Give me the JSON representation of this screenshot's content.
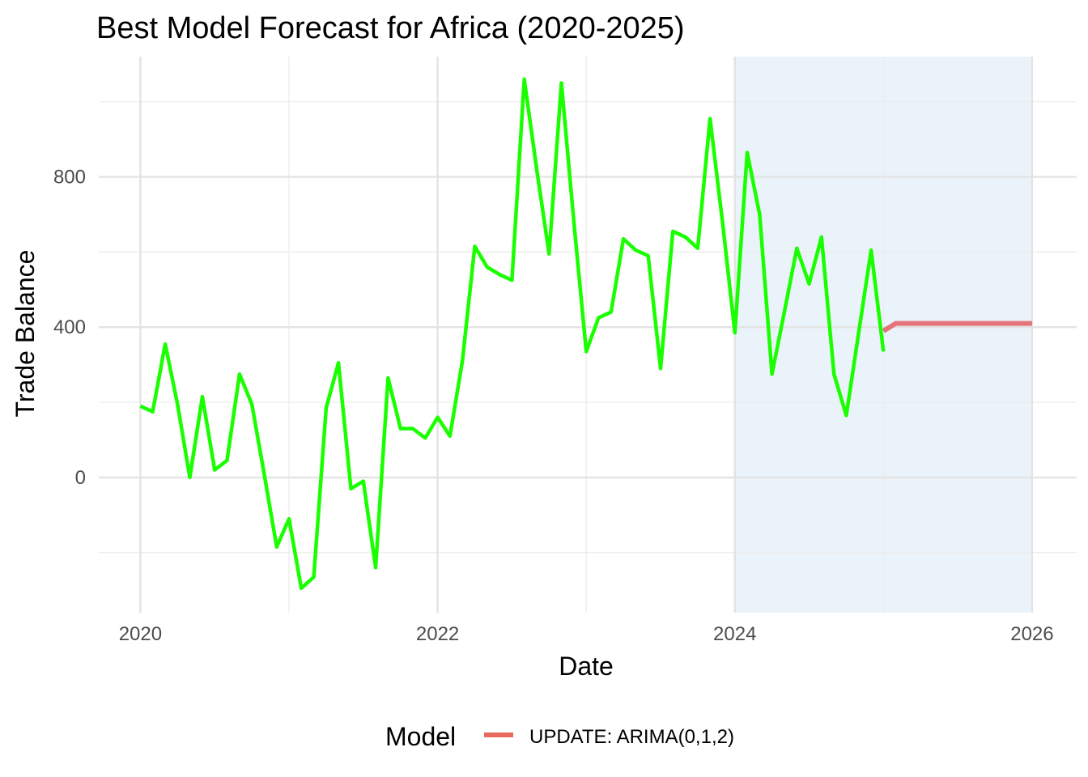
{
  "chart_data": {
    "type": "line",
    "title": "Best Model Forecast for Africa (2020-2025)",
    "xlabel": "Date",
    "ylabel": "Trade Balance",
    "x_ticks": [
      "2020",
      "2022",
      "2024",
      "2026"
    ],
    "y_ticks": [
      "0",
      "400",
      "800"
    ],
    "xlim": [
      2019.72,
      2026.3
    ],
    "ylim": [
      -360,
      1120
    ],
    "grid": true,
    "shaded_regions": [
      {
        "x_start": 2024.0,
        "x_end": 2026.0,
        "color": "#deebf7"
      }
    ],
    "series": [
      {
        "name": "",
        "color": "#1aff00",
        "x": [
          2020.0,
          2020.083,
          2020.167,
          2020.25,
          2020.333,
          2020.417,
          2020.5,
          2020.583,
          2020.667,
          2020.75,
          2020.833,
          2020.917,
          2021.0,
          2021.083,
          2021.167,
          2021.25,
          2021.333,
          2021.417,
          2021.5,
          2021.583,
          2021.667,
          2021.75,
          2021.833,
          2021.917,
          2022.0,
          2022.083,
          2022.167,
          2022.25,
          2022.333,
          2022.417,
          2022.5,
          2022.583,
          2022.667,
          2022.75,
          2022.833,
          2022.917,
          2023.0,
          2023.083,
          2023.167,
          2023.25,
          2023.333,
          2023.417,
          2023.5,
          2023.583,
          2023.667,
          2023.75,
          2023.833,
          2023.917,
          2024.0,
          2024.083,
          2024.167,
          2024.25,
          2024.333,
          2024.417,
          2024.5,
          2024.583,
          2024.667,
          2024.75,
          2024.833,
          2024.917,
          2025.0
        ],
        "values": [
          190,
          175,
          355,
          195,
          0,
          215,
          20,
          45,
          275,
          195,
          10,
          -185,
          -110,
          -295,
          -265,
          185,
          305,
          -30,
          -10,
          -240,
          265,
          130,
          130,
          105,
          160,
          110,
          310,
          615,
          560,
          540,
          525,
          1060,
          820,
          595,
          1050,
          680,
          335,
          425,
          440,
          635,
          605,
          590,
          290,
          655,
          640,
          610,
          955,
          680,
          385,
          865,
          700,
          275,
          440,
          610,
          515,
          640,
          275,
          165,
          385,
          605,
          335
        ]
      },
      {
        "name": "UPDATE: ARIMA(0,1,2)",
        "color": "#e5737a",
        "x": [
          2025.0,
          2025.083,
          2025.167,
          2025.25,
          2025.333,
          2025.417,
          2025.5,
          2025.583,
          2025.667,
          2025.75,
          2025.833,
          2025.917,
          2026.0
        ],
        "values": [
          390,
          410,
          410,
          410,
          410,
          410,
          410,
          410,
          410,
          410,
          410,
          410,
          410
        ]
      }
    ],
    "legend": {
      "title": "Model",
      "position": "bottom",
      "items": [
        {
          "label": "UPDATE: ARIMA(0,1,2)",
          "color": "#e8695f"
        }
      ]
    }
  }
}
